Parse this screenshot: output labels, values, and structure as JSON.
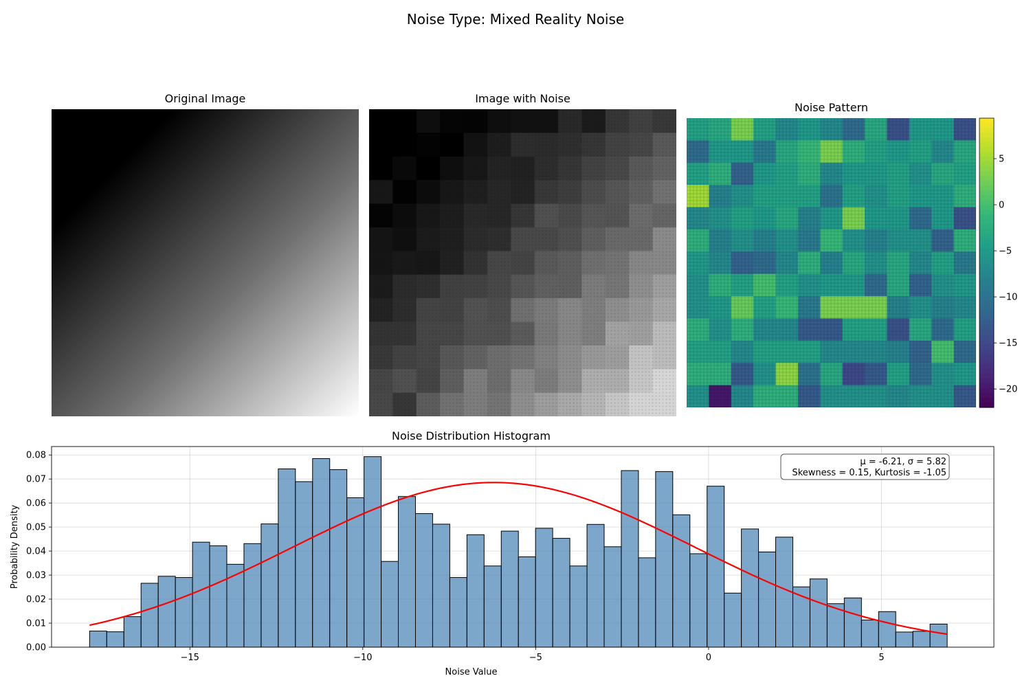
{
  "figure": {
    "suptitle": "Noise Type: Mixed Reality Noise"
  },
  "panels": {
    "original": {
      "title": "Original Image"
    },
    "noisy": {
      "title": "Image with Noise"
    },
    "pattern": {
      "title": "Noise Pattern"
    }
  },
  "colors": {
    "bar_fill": "#4682b4",
    "bar_edge": "#000000",
    "fit_line": "#ff0000",
    "grid": "#b0b0b0",
    "viridis": [
      "#440154",
      "#482878",
      "#3e4989",
      "#31688e",
      "#26828e",
      "#1f9e89",
      "#35b779",
      "#6ece58",
      "#b5de2b",
      "#fde725"
    ]
  },
  "colorbar": {
    "min": -22.0,
    "max": 9.4,
    "ticks": [
      5,
      0,
      -5,
      -10,
      -15,
      -20
    ],
    "tick_labels": [
      "5",
      "0",
      "−5",
      "−10",
      "−15",
      "−20"
    ]
  },
  "noise_grid": [
    [
      -4,
      -3,
      3,
      -4,
      -7,
      -5,
      -7,
      -11,
      -3,
      -14,
      -5,
      -5,
      -14
    ],
    [
      -11,
      -5,
      -5,
      -9,
      -3,
      -1,
      3,
      -2,
      -4,
      -5,
      -4,
      -7,
      -3
    ],
    [
      -4,
      -2,
      -12,
      -5,
      -4,
      -2,
      -7,
      -5,
      -5,
      -4,
      -6,
      -3,
      -4
    ],
    [
      5,
      -8,
      -6,
      -4,
      -4,
      -4,
      -10,
      -4,
      -6,
      -4,
      -5,
      -5,
      -2
    ],
    [
      -7,
      -6,
      -4,
      -5,
      -3,
      -8,
      -5,
      3,
      -5,
      -5,
      -11,
      -5,
      -14
    ],
    [
      -2,
      -8,
      -6,
      -8,
      -6,
      -9,
      -1,
      -6,
      -8,
      -6,
      -6,
      -12,
      -2
    ],
    [
      -5,
      -7,
      -12,
      -11,
      -7,
      -2,
      -8,
      -3,
      -6,
      -3,
      -7,
      -4,
      -9
    ],
    [
      -6,
      -2,
      -4,
      0,
      -4,
      -6,
      -5,
      -5,
      -11,
      -3,
      -12,
      -6,
      -5
    ],
    [
      -6,
      -5,
      2,
      -4,
      -1,
      -9,
      3,
      3,
      3,
      -8,
      -6,
      -8,
      -7
    ],
    [
      -2,
      -6,
      -2,
      -7,
      -7,
      -13,
      -13,
      -4,
      -4,
      -14,
      -3,
      -11,
      -4
    ],
    [
      -4,
      -4,
      -7,
      -4,
      -4,
      -4,
      -7,
      -7,
      -7,
      -8,
      -12,
      0,
      -11
    ],
    [
      -2,
      -2,
      -13,
      -6,
      4,
      -10,
      -3,
      -15,
      -13,
      -4,
      -11,
      -6,
      -5
    ],
    [
      -6,
      -20,
      -7,
      -2,
      -2,
      -13,
      -6,
      -6,
      -6,
      -7,
      -6,
      -6,
      -13
    ]
  ],
  "chart_data": {
    "type": "bar",
    "title": "Noise Distribution Histogram",
    "xlabel": "Noise Value",
    "ylabel": "Probability Density",
    "xlim": [
      -19,
      8.25
    ],
    "ylim": [
      0,
      0.0835
    ],
    "xticks": [
      -15,
      -10,
      -5,
      0,
      5
    ],
    "xtick_labels": [
      "−15",
      "−10",
      "−5",
      "0",
      "5"
    ],
    "yticks": [
      0,
      0.01,
      0.02,
      0.03,
      0.04,
      0.05,
      0.06,
      0.07,
      0.08
    ],
    "ytick_labels": [
      "0.00",
      "0.01",
      "0.02",
      "0.03",
      "0.04",
      "0.05",
      "0.06",
      "0.07",
      "0.08"
    ],
    "grid": true,
    "bin_start": -17.9,
    "bin_width": 0.496,
    "values": [
      0.0067,
      0.0064,
      0.0127,
      0.0266,
      0.0295,
      0.029,
      0.0437,
      0.0422,
      0.0345,
      0.0431,
      0.0513,
      0.0742,
      0.0689,
      0.0785,
      0.0739,
      0.0622,
      0.0793,
      0.0357,
      0.0627,
      0.0556,
      0.0512,
      0.029,
      0.0468,
      0.0338,
      0.0483,
      0.0376,
      0.0495,
      0.0453,
      0.0338,
      0.0511,
      0.0418,
      0.0735,
      0.0372,
      0.0731,
      0.0551,
      0.0389,
      0.067,
      0.0225,
      0.0492,
      0.0396,
      0.0458,
      0.0251,
      0.0284,
      0.0181,
      0.0205,
      0.0113,
      0.0148,
      0.0063,
      0.0066,
      0.0096
    ],
    "fit": {
      "mu": -6.21,
      "sigma": 5.82,
      "x_range": [
        -17.9,
        6.9
      ]
    },
    "annotation": {
      "line1": "μ = -6.21, σ = 5.82",
      "line2": "Skewness = 0.15, Kurtosis = -1.05"
    }
  }
}
